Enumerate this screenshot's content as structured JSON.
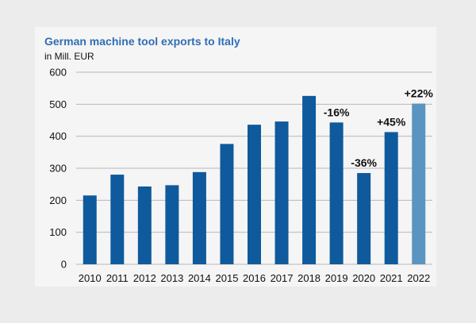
{
  "chart_data": {
    "type": "bar",
    "title": "German machine tool exports to Italy",
    "ylabel": "in Mill. EUR",
    "xlabel": "",
    "categories": [
      "2010",
      "2011",
      "2012",
      "2013",
      "2014",
      "2015",
      "2016",
      "2017",
      "2018",
      "2019",
      "2020",
      "2021",
      "2022"
    ],
    "values": [
      215,
      280,
      243,
      247,
      288,
      376,
      436,
      446,
      526,
      443,
      285,
      413,
      502
    ],
    "ylim": [
      0,
      600
    ],
    "yticks": [
      "0",
      "100",
      "200",
      "300",
      "400",
      "500",
      "600"
    ],
    "grid": true,
    "annotations": [
      {
        "category": "2019",
        "text": "-16%"
      },
      {
        "category": "2020",
        "text": "-36%"
      },
      {
        "category": "2021",
        "text": "+45%"
      },
      {
        "category": "2022",
        "text": "+22%"
      }
    ],
    "highlighted_category": "2022",
    "colors": {
      "bar": "#0f5a9c",
      "bar_highlight": "#5a95c2",
      "grid": "#b8b8b8",
      "title": "#2f6eb4",
      "background": "#ececec",
      "panel": "#f5f5f5"
    }
  }
}
